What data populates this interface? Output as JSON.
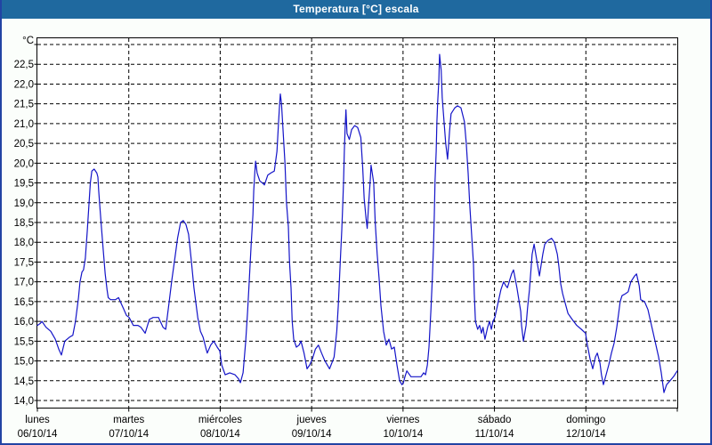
{
  "window": {
    "title": "Temperatura [°C] escala"
  },
  "colors": {
    "header_bg": "#1f699f",
    "header_text": "#ffffff",
    "panel_bg": "#fbfefb",
    "panel_border": "#2244a4",
    "plot_bg": "#ffffff",
    "grid": "#000000",
    "text": "#000000",
    "line": "#1414c8"
  },
  "chart_data": {
    "type": "line",
    "title": "Temperatura [°C] escala",
    "grid": "dashed",
    "legend": "none",
    "y_axis": {
      "unit_label": "°C",
      "min": 14.0,
      "max": 23.0,
      "tick_step": 0.5,
      "decimal_separator": ",",
      "tick_labels": [
        "22,5",
        "22,0",
        "21,5",
        "21,0",
        "20,5",
        "20,0",
        "19,5",
        "19,0",
        "18,5",
        "18,0",
        "17,5",
        "17,0",
        "16,5",
        "16,0",
        "15,5",
        "15,0",
        "14,5",
        "14,0"
      ]
    },
    "x_axis": {
      "span_hours": 168,
      "days": [
        {
          "name": "lunes",
          "date": "06/10/14"
        },
        {
          "name": "martes",
          "date": "07/10/14"
        },
        {
          "name": "miércoles",
          "date": "08/10/14"
        },
        {
          "name": "jueves",
          "date": "09/10/14"
        },
        {
          "name": "viernes",
          "date": "10/10/14"
        },
        {
          "name": "sábado",
          "date": "11/10/14"
        },
        {
          "name": "domingo",
          "date": "12/10/14"
        }
      ]
    },
    "series": [
      {
        "name": "Temperatura [°C]",
        "points_hour_temp": [
          [
            0,
            15.9
          ],
          [
            0.8,
            15.95
          ],
          [
            1.2,
            16.0
          ],
          [
            2.3,
            15.85
          ],
          [
            3.5,
            15.75
          ],
          [
            4.7,
            15.55
          ],
          [
            5.6,
            15.3
          ],
          [
            6.3,
            15.15
          ],
          [
            7.2,
            15.5
          ],
          [
            8.4,
            15.6
          ],
          [
            9.3,
            15.65
          ],
          [
            10,
            16.0
          ],
          [
            10.8,
            16.6
          ],
          [
            11.2,
            17.0
          ],
          [
            11.7,
            17.25
          ],
          [
            12.1,
            17.3
          ],
          [
            12.6,
            17.6
          ],
          [
            13.1,
            18.3
          ],
          [
            13.5,
            18.9
          ],
          [
            13.9,
            19.5
          ],
          [
            14.3,
            19.8
          ],
          [
            14.9,
            19.85
          ],
          [
            15.6,
            19.75
          ],
          [
            15.9,
            19.65
          ],
          [
            16.1,
            19.3
          ],
          [
            16.4,
            18.9
          ],
          [
            16.8,
            18.4
          ],
          [
            17.3,
            17.8
          ],
          [
            17.8,
            17.2
          ],
          [
            18.3,
            16.8
          ],
          [
            18.6,
            16.6
          ],
          [
            19.2,
            16.55
          ],
          [
            20.5,
            16.55
          ],
          [
            21.3,
            16.6
          ],
          [
            22.0,
            16.45
          ],
          [
            22.7,
            16.3
          ],
          [
            23.4,
            16.15
          ],
          [
            24.1,
            16.1
          ],
          [
            25.2,
            15.9
          ],
          [
            26.4,
            15.9
          ],
          [
            27.2,
            15.85
          ],
          [
            28.3,
            15.7
          ],
          [
            29.4,
            16.05
          ],
          [
            30.4,
            16.1
          ],
          [
            31.8,
            16.1
          ],
          [
            33.0,
            15.85
          ],
          [
            33.7,
            15.8
          ],
          [
            34.6,
            16.5
          ],
          [
            35.3,
            17.05
          ],
          [
            36.1,
            17.6
          ],
          [
            36.8,
            18.1
          ],
          [
            37.6,
            18.5
          ],
          [
            38.3,
            18.55
          ],
          [
            39.0,
            18.45
          ],
          [
            39.7,
            18.2
          ],
          [
            40.4,
            17.55
          ],
          [
            41.1,
            16.85
          ],
          [
            42.1,
            16.1
          ],
          [
            42.8,
            15.75
          ],
          [
            43.5,
            15.6
          ],
          [
            44.3,
            15.3
          ],
          [
            44.6,
            15.2
          ],
          [
            45.5,
            15.4
          ],
          [
            46.3,
            15.5
          ],
          [
            47.2,
            15.35
          ],
          [
            47.9,
            15.25
          ],
          [
            48.4,
            14.9
          ],
          [
            49.3,
            14.65
          ],
          [
            50.5,
            14.7
          ],
          [
            51.9,
            14.65
          ],
          [
            52.8,
            14.55
          ],
          [
            53.3,
            14.45
          ],
          [
            54.0,
            14.7
          ],
          [
            54.7,
            15.5
          ],
          [
            55.2,
            16.25
          ],
          [
            55.6,
            17.0
          ],
          [
            56.1,
            17.9
          ],
          [
            56.6,
            18.7
          ],
          [
            56.8,
            19.3
          ],
          [
            57.1,
            19.8
          ],
          [
            57.3,
            20.05
          ],
          [
            57.7,
            19.75
          ],
          [
            58.4,
            19.55
          ],
          [
            59.1,
            19.5
          ],
          [
            59.6,
            19.45
          ],
          [
            60.5,
            19.7
          ],
          [
            61.3,
            19.75
          ],
          [
            62.2,
            19.8
          ],
          [
            62.9,
            20.3
          ],
          [
            63.3,
            21.0
          ],
          [
            63.6,
            21.5
          ],
          [
            63.8,
            21.75
          ],
          [
            64.1,
            21.5
          ],
          [
            64.4,
            21.0
          ],
          [
            64.7,
            20.5
          ],
          [
            65.0,
            20.0
          ],
          [
            65.4,
            19.0
          ],
          [
            65.9,
            18.4
          ],
          [
            66.2,
            17.5
          ],
          [
            66.6,
            16.85
          ],
          [
            66.9,
            16.0
          ],
          [
            67.3,
            15.55
          ],
          [
            68.0,
            15.35
          ],
          [
            68.7,
            15.4
          ],
          [
            69.2,
            15.5
          ],
          [
            70.0,
            15.2
          ],
          [
            70.3,
            15.05
          ],
          [
            70.8,
            14.8
          ],
          [
            71.5,
            14.9
          ],
          [
            72.2,
            15.05
          ],
          [
            73.0,
            15.3
          ],
          [
            73.8,
            15.4
          ],
          [
            74.6,
            15.2
          ],
          [
            75.5,
            15.0
          ],
          [
            76.7,
            14.8
          ],
          [
            77.5,
            15.0
          ],
          [
            77.9,
            15.1
          ],
          [
            78.6,
            15.75
          ],
          [
            79.0,
            16.4
          ],
          [
            79.5,
            17.45
          ],
          [
            79.9,
            18.3
          ],
          [
            80.2,
            19.0
          ],
          [
            80.4,
            19.6
          ],
          [
            80.6,
            20.3
          ],
          [
            80.8,
            20.9
          ],
          [
            81.0,
            21.35
          ],
          [
            81.3,
            20.75
          ],
          [
            81.9,
            20.6
          ],
          [
            82.5,
            20.85
          ],
          [
            83.3,
            20.95
          ],
          [
            84.1,
            20.9
          ],
          [
            84.9,
            20.65
          ],
          [
            85.4,
            19.9
          ],
          [
            85.8,
            19.1
          ],
          [
            86.3,
            18.6
          ],
          [
            86.6,
            18.35
          ],
          [
            87.0,
            19.0
          ],
          [
            87.4,
            19.6
          ],
          [
            87.6,
            19.95
          ],
          [
            88.0,
            19.7
          ],
          [
            88.3,
            19.5
          ],
          [
            88.7,
            18.5
          ],
          [
            89.2,
            17.7
          ],
          [
            89.7,
            17.1
          ],
          [
            90.2,
            16.4
          ],
          [
            90.9,
            15.75
          ],
          [
            91.6,
            15.4
          ],
          [
            92.3,
            15.55
          ],
          [
            93.0,
            15.3
          ],
          [
            93.7,
            15.35
          ],
          [
            94.4,
            14.9
          ],
          [
            95.1,
            14.5
          ],
          [
            95.7,
            14.4
          ],
          [
            96.1,
            14.45
          ],
          [
            96.5,
            14.6
          ],
          [
            97.0,
            14.75
          ],
          [
            98.1,
            14.6
          ],
          [
            99.5,
            14.6
          ],
          [
            100.7,
            14.6
          ],
          [
            101.4,
            14.7
          ],
          [
            101.9,
            14.65
          ],
          [
            102.4,
            14.9
          ],
          [
            102.8,
            15.35
          ],
          [
            103.3,
            16.25
          ],
          [
            103.7,
            17.1
          ],
          [
            104.0,
            17.9
          ],
          [
            104.2,
            18.7
          ],
          [
            104.4,
            19.55
          ],
          [
            104.7,
            20.3
          ],
          [
            104.9,
            21.05
          ],
          [
            105.1,
            21.55
          ],
          [
            105.4,
            22.1
          ],
          [
            105.6,
            22.75
          ],
          [
            106.0,
            22.35
          ],
          [
            106.3,
            21.65
          ],
          [
            106.8,
            21.0
          ],
          [
            107.2,
            20.5
          ],
          [
            107.7,
            20.1
          ],
          [
            108.2,
            20.8
          ],
          [
            108.6,
            21.25
          ],
          [
            109.6,
            21.4
          ],
          [
            110.3,
            21.45
          ],
          [
            111.2,
            21.4
          ],
          [
            112.1,
            21.05
          ],
          [
            112.6,
            20.5
          ],
          [
            113.1,
            19.75
          ],
          [
            113.5,
            18.95
          ],
          [
            114.0,
            18.2
          ],
          [
            114.5,
            17.45
          ],
          [
            114.7,
            16.7
          ],
          [
            115.0,
            16.0
          ],
          [
            115.6,
            15.8
          ],
          [
            116.1,
            15.9
          ],
          [
            116.6,
            15.7
          ],
          [
            117.0,
            15.85
          ],
          [
            117.5,
            15.55
          ],
          [
            118.2,
            15.85
          ],
          [
            118.7,
            16.0
          ],
          [
            119.2,
            15.8
          ],
          [
            119.6,
            16.0
          ],
          [
            120.1,
            16.1
          ],
          [
            121.0,
            16.5
          ],
          [
            121.7,
            16.8
          ],
          [
            122.4,
            17.0
          ],
          [
            123.0,
            16.9
          ],
          [
            123.4,
            16.85
          ],
          [
            124.5,
            17.2
          ],
          [
            125.0,
            17.3
          ],
          [
            125.9,
            16.85
          ],
          [
            126.9,
            16.25
          ],
          [
            127.1,
            15.9
          ],
          [
            127.6,
            15.5
          ],
          [
            128.3,
            15.9
          ],
          [
            128.7,
            16.35
          ],
          [
            129.2,
            16.8
          ],
          [
            129.9,
            17.7
          ],
          [
            130.4,
            17.95
          ],
          [
            131.1,
            17.55
          ],
          [
            131.8,
            17.15
          ],
          [
            132.7,
            17.7
          ],
          [
            133.2,
            17.95
          ],
          [
            134.1,
            18.05
          ],
          [
            135.0,
            18.1
          ],
          [
            135.7,
            18.0
          ],
          [
            136.5,
            17.7
          ],
          [
            136.9,
            17.4
          ],
          [
            137.4,
            16.95
          ],
          [
            137.9,
            16.7
          ],
          [
            138.6,
            16.45
          ],
          [
            139.3,
            16.2
          ],
          [
            140.4,
            16.05
          ],
          [
            141.6,
            15.9
          ],
          [
            142.8,
            15.8
          ],
          [
            143.9,
            15.7
          ],
          [
            144.4,
            15.4
          ],
          [
            145.1,
            15.05
          ],
          [
            145.8,
            14.8
          ],
          [
            146.5,
            15.1
          ],
          [
            147.0,
            15.2
          ],
          [
            147.7,
            14.95
          ],
          [
            148.1,
            14.65
          ],
          [
            148.6,
            14.4
          ],
          [
            149.3,
            14.65
          ],
          [
            150.0,
            14.9
          ],
          [
            150.7,
            15.2
          ],
          [
            151.4,
            15.45
          ],
          [
            152.1,
            15.85
          ],
          [
            152.6,
            16.2
          ],
          [
            153.0,
            16.5
          ],
          [
            153.5,
            16.65
          ],
          [
            154.4,
            16.7
          ],
          [
            155.1,
            16.75
          ],
          [
            155.8,
            17.0
          ],
          [
            156.8,
            17.15
          ],
          [
            157.3,
            17.2
          ],
          [
            158.0,
            16.9
          ],
          [
            158.4,
            16.55
          ],
          [
            159.4,
            16.5
          ],
          [
            160.3,
            16.3
          ],
          [
            161.0,
            16.0
          ],
          [
            161.7,
            15.7
          ],
          [
            162.4,
            15.4
          ],
          [
            163.1,
            15.1
          ],
          [
            163.8,
            14.7
          ],
          [
            164.5,
            14.2
          ],
          [
            165.2,
            14.4
          ],
          [
            166.1,
            14.5
          ],
          [
            167.0,
            14.6
          ],
          [
            168.0,
            14.75
          ]
        ]
      }
    ]
  }
}
